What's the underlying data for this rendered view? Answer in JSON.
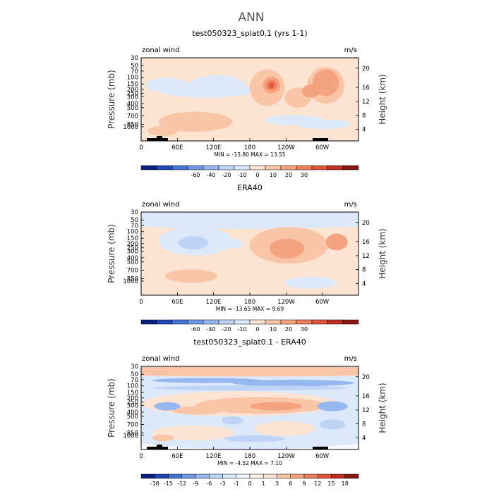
{
  "figure": {
    "title": "ANN",
    "colors": {
      "positive_scale": [
        "#fde3d2",
        "#fac4a6",
        "#f5a27e",
        "#ee7e5b",
        "#e2553b",
        "#c02f22",
        "#8b1710"
      ],
      "negative_scale": [
        "#dce9fb",
        "#bed4f7",
        "#96b7f0",
        "#6d98e6",
        "#4575d8",
        "#1f47b5",
        "#0b1f7e"
      ],
      "topography": "#000000"
    }
  },
  "chart_data": [
    {
      "type": "heatmap",
      "title": "test050323_splat0.1 (yrs 1-1)",
      "variable_label": "zonal wind",
      "units": "m/s",
      "xlabel": "",
      "ylabel": "Pressure (mb)",
      "y2label": "Height (km)",
      "x_ticks": [
        "0",
        "60E",
        "120E",
        "180",
        "120W",
        "60W"
      ],
      "y_ticks": [
        "30",
        "50",
        "70",
        "100",
        "150",
        "200",
        "250",
        "300",
        "400",
        "500",
        "700",
        "850",
        "1000"
      ],
      "y2_ticks": [
        "20",
        "16",
        "12",
        "8",
        "4"
      ],
      "stats": "MIN = -13.80   MAX =  13.55",
      "min": -13.8,
      "max": 13.55,
      "colorbar": {
        "labels": [
          "-60",
          "-40",
          "-20",
          "-10",
          "0",
          "10",
          "20",
          "30"
        ],
        "colors": [
          "#0b1f7e",
          "#1f47b5",
          "#4575d8",
          "#6d98e6",
          "#96b7f0",
          "#bed4f7",
          "#dce9fb",
          "#fde3d2",
          "#fac4a6",
          "#f5a27e",
          "#ee7e5b",
          "#e2553b",
          "#c02f22",
          "#8b1710"
        ]
      }
    },
    {
      "type": "heatmap",
      "title": "ERA40",
      "variable_label": "zonal wind",
      "units": "m/s",
      "xlabel": "",
      "ylabel": "Pressure (mb)",
      "y2label": "Height (km)",
      "x_ticks": [
        "0",
        "60E",
        "120E",
        "180",
        "120W",
        "60W"
      ],
      "y_ticks": [
        "30",
        "50",
        "70",
        "100",
        "150",
        "200",
        "250",
        "300",
        "400",
        "500",
        "700",
        "850",
        "1000"
      ],
      "y2_ticks": [
        "20",
        "16",
        "12",
        "8",
        "4"
      ],
      "stats": "MIN = -13.65   MAX =   9.69",
      "min": -13.65,
      "max": 9.69,
      "colorbar": {
        "labels": [
          "-60",
          "-40",
          "-20",
          "-10",
          "0",
          "10",
          "20",
          "30"
        ],
        "colors": [
          "#0b1f7e",
          "#1f47b5",
          "#4575d8",
          "#6d98e6",
          "#96b7f0",
          "#bed4f7",
          "#dce9fb",
          "#fde3d2",
          "#fac4a6",
          "#f5a27e",
          "#ee7e5b",
          "#e2553b",
          "#c02f22",
          "#8b1710"
        ]
      }
    },
    {
      "type": "heatmap",
      "title": "test050323_splat0.1 - ERA40",
      "variable_label": "zonal wind",
      "units": "m/s",
      "xlabel": "",
      "ylabel": "Pressure (mb)",
      "y2label": "Height (km)",
      "x_ticks": [
        "0",
        "60E",
        "120E",
        "180",
        "120W",
        "60W"
      ],
      "y_ticks": [
        "30",
        "50",
        "70",
        "100",
        "150",
        "200",
        "250",
        "300",
        "400",
        "500",
        "700",
        "850",
        "1000"
      ],
      "y2_ticks": [
        "20",
        "16",
        "12",
        "8",
        "4"
      ],
      "stats": "MIN =  -4.52   MAX =   7.10",
      "min": -4.52,
      "max": 7.1,
      "colorbar": {
        "labels": [
          "-18",
          "-15",
          "-12",
          "-9",
          "-6",
          "-3",
          "-1",
          "0",
          "1",
          "3",
          "6",
          "9",
          "12",
          "15",
          "18"
        ],
        "colors": [
          "#0b1f7e",
          "#1f47b5",
          "#4575d8",
          "#6d98e6",
          "#96b7f0",
          "#bed4f7",
          "#dce9fb",
          "#eef3fd",
          "#fdf0e6",
          "#fde3d2",
          "#fac4a6",
          "#f5a27e",
          "#ee7e5b",
          "#e2553b",
          "#c02f22",
          "#8b1710"
        ]
      }
    }
  ]
}
